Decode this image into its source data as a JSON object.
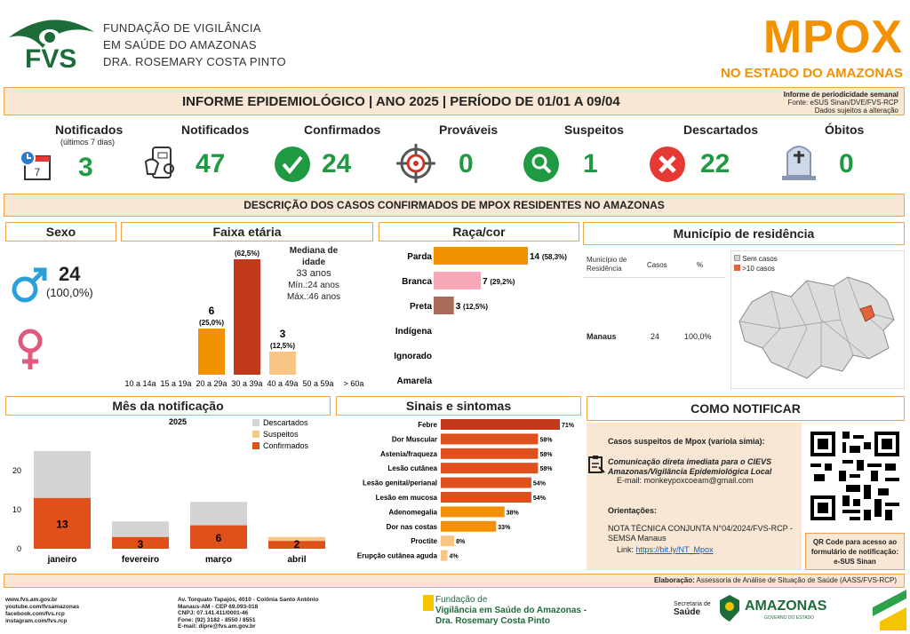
{
  "header": {
    "org_line1": "FUNDAÇÃO DE VIGILÂNCIA",
    "org_line2": "EM SAÚDE DO AMAZONAS",
    "org_line3": "DRA. ROSEMARY COSTA PINTO",
    "logo_text": "FVS",
    "title": "MPOX",
    "subtitle": "NO ESTADO DO AMAZONAS"
  },
  "band": {
    "title": "INFORME EPIDEMIOLÓGICO | ANO 2025 | PERÍODO DE 01/01 A 09/04",
    "note1": "Informe de periodicidade semanal",
    "note2": "Fonte: eSUS Sinan/DVE/FVS-RCP",
    "note3": "Dados sujeitos a alteração"
  },
  "kpis": [
    {
      "label": "Notificados",
      "sub": "(últimos 7 dias)",
      "value": "3",
      "icon": "calendar-clock-icon"
    },
    {
      "label": "Notificados",
      "value": "47",
      "icon": "phone-notify-icon"
    },
    {
      "label": "Confirmados",
      "value": "24",
      "icon": "check-circle-icon"
    },
    {
      "label": "Prováveis",
      "value": "0",
      "icon": "target-icon"
    },
    {
      "label": "Suspeitos",
      "value": "1",
      "icon": "search-circle-icon"
    },
    {
      "label": "Descartados",
      "value": "22",
      "icon": "x-circle-icon"
    },
    {
      "label": "Óbitos",
      "value": "0",
      "icon": "tombstone-icon"
    }
  ],
  "description_title": "DESCRIÇÃO DOS CASOS CONFIRMADOS DE MPOX RESIDENTES NO AMAZONAS",
  "sexo": {
    "title": "Sexo",
    "male_count": "24",
    "male_pct": "(100,0%)"
  },
  "faixa": {
    "title": "Faixa etária",
    "median_title": "Mediana de idade",
    "median": "33 anos",
    "min": "Mín.:24 anos",
    "max": "Máx.:46 anos"
  },
  "raca": {
    "title": "Raça/cor"
  },
  "municipio": {
    "title": "Município de residência",
    "col1": "Município de",
    "col1b": "Residência",
    "col2": "Casos",
    "col3": "%",
    "row_name": "Manaus",
    "row_cases": "24",
    "row_pct": "100,0%",
    "legend1": "Sem casos",
    "legend2": ">10 casos"
  },
  "mes": {
    "title": "Mês da notificação",
    "year": "2025",
    "legend": [
      "Descartados",
      "Suspeitos",
      "Confirmados"
    ]
  },
  "sinais": {
    "title": "Sinais e sintomas"
  },
  "notificar": {
    "title": "COMO NOTIFICAR",
    "cases_title": "Casos suspeitos de Mpox (varíola símia):",
    "comm1": "Comunicação direta imediata para o CIEVS",
    "comm2": "Amazonas/Vigilância Epidemiológica Local",
    "email_label": "E-mail:",
    "email": "monkeypoxcoeam@gmail.com",
    "orient_title": "Orientações:",
    "nota1": "NOTA TÉCNICA CONJUNTA N°04/2024/FVS-RCP -",
    "nota2": "SEMSA Manaus",
    "link_label": "Link:",
    "link": "https://bit.ly/NT_Mpox",
    "qr1": "QR Code para acesso ao",
    "qr2": "formulário de notificação:",
    "qr3": "e-SUS Sinan"
  },
  "elaboracao": {
    "label": "Elaboração:",
    "text": "Assessoria de Análise de Situação de Saúde (AASS/FVS-RCP)"
  },
  "footer": {
    "web": [
      "www.fvs.am.gov.br",
      "youtube.com/fvsamazonas",
      "facebook.com/fvs.rcp",
      "instagram.com/fvs.rcp"
    ],
    "address": [
      "Av. Torquato Tapajós, 4010 - Colônia Santo Antônio",
      "Manaus-AM - CEP 69.093-018",
      "CNPJ: 07.141.411/0001-46",
      "Fone: (92) 3182 - 8550 / 8551",
      "E-mail: dipre@fvs.am.gov.br"
    ],
    "fvs1": "Fundação de",
    "fvs2": "Vigilância em Saúde do Amazonas -",
    "fvs3": "Dra. Rosemary Costa Pinto",
    "sec1": "Secretaria de",
    "sec2": "Saúde",
    "gov": "AMAZONAS",
    "gov_sub": "GOVERNO DO ESTADO"
  },
  "chart_data": [
    {
      "type": "bar",
      "title": "Faixa etária",
      "categories": [
        "10 a 14a",
        "15 a 19a",
        "20 a 29a",
        "30 a 39a",
        "40 a 49a",
        "50 a 59a",
        "> 60a"
      ],
      "values": [
        0,
        0,
        6,
        15,
        3,
        0,
        0
      ],
      "labels": [
        "",
        "",
        "(25,0%)",
        "(62,5%)",
        "(12,5%)",
        "",
        ""
      ]
    },
    {
      "type": "bar",
      "title": "Raça/cor",
      "orientation": "horizontal",
      "categories": [
        "Parda",
        "Branca",
        "Preta",
        "Indígena",
        "Ignorado",
        "Amarela"
      ],
      "values": [
        14,
        7,
        3,
        0,
        0,
        0
      ],
      "labels": [
        "(58,3%)",
        "(29,2%)",
        "(12,5%)",
        "",
        "",
        ""
      ]
    },
    {
      "type": "bar",
      "title": "Mês da notificação",
      "stacked": true,
      "categories": [
        "janeiro",
        "fevereiro",
        "março",
        "abril"
      ],
      "series": [
        {
          "name": "Confirmados",
          "values": [
            13,
            3,
            6,
            2
          ]
        },
        {
          "name": "Suspeitos",
          "values": [
            0,
            0,
            0,
            1
          ]
        },
        {
          "name": "Descartados",
          "values": [
            12,
            4,
            6,
            0
          ]
        }
      ],
      "yticks": [
        "0",
        "10",
        "20"
      ],
      "ylim": [
        0,
        25
      ]
    },
    {
      "type": "bar",
      "title": "Sinais e sintomas",
      "orientation": "horizontal",
      "categories": [
        "Febre",
        "Dor Muscular",
        "Astenia/fraqueza",
        "Lesão cutânea",
        "Lesão genital/perianal",
        "Lesão em mucosa",
        "Adenomegalia",
        "Dor nas costas",
        "Proctite",
        "Erupção cutânea aguda"
      ],
      "values": [
        71,
        58,
        58,
        58,
        54,
        54,
        38,
        33,
        8,
        4
      ],
      "labels": [
        "71%",
        "58%",
        "58%",
        "58%",
        "54%",
        "54%",
        "38%",
        "33%",
        "8%",
        "4%"
      ]
    }
  ],
  "colors": {
    "orange": "#f39200",
    "green": "#1f9a42",
    "confirmed": "#e0501b",
    "suspect": "#f9c584",
    "discarded": "#d3d3d3",
    "pink": "#f7a8b8",
    "brown": "#a86c58",
    "dark": "#c0391b"
  }
}
